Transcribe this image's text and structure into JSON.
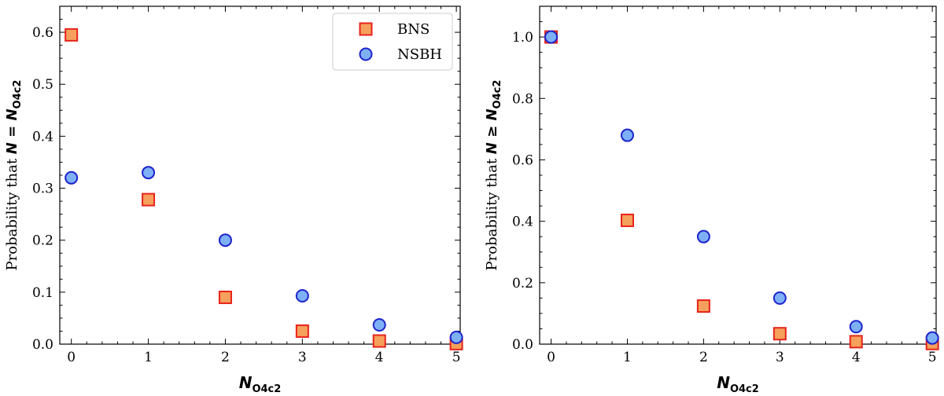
{
  "chart_data": [
    {
      "type": "scatter",
      "panel": "left",
      "x": [
        0,
        1,
        2,
        3,
        4,
        5
      ],
      "xlim": [
        -0.15,
        5.05
      ],
      "ylim": [
        0,
        0.65
      ],
      "xticks": [
        "0",
        "1",
        "2",
        "3",
        "4",
        "5"
      ],
      "yticks": [
        "0.0",
        "0.1",
        "0.2",
        "0.3",
        "0.4",
        "0.5",
        "0.6"
      ],
      "ytick_values": [
        0,
        0.1,
        0.2,
        0.3,
        0.4,
        0.5,
        0.6
      ],
      "xlabel": {
        "main": "N",
        "sub": "O4c2"
      },
      "ylabel": {
        "prefix": "Probability that ",
        "math": "N = N",
        "sub": "O4c2"
      },
      "legend": "top-right",
      "series": [
        {
          "name": "BNS",
          "marker": "square",
          "face": "#f5a05c",
          "edge": "#e8231b",
          "values": [
            0.595,
            0.278,
            0.09,
            0.025,
            0.006,
            0.001
          ]
        },
        {
          "name": "NSBH",
          "marker": "circle",
          "face": "#7db0f5",
          "edge": "#1f24cc",
          "values": [
            0.32,
            0.33,
            0.2,
            0.093,
            0.037,
            0.013
          ]
        }
      ]
    },
    {
      "type": "scatter",
      "panel": "right",
      "x": [
        0,
        1,
        2,
        3,
        4,
        5
      ],
      "xlim": [
        -0.15,
        5.05
      ],
      "ylim": [
        0,
        1.1
      ],
      "xticks": [
        "0",
        "1",
        "2",
        "3",
        "4",
        "5"
      ],
      "yticks": [
        "0.0",
        "0.2",
        "0.4",
        "0.6",
        "0.8",
        "1.0"
      ],
      "ytick_values": [
        0,
        0.2,
        0.4,
        0.6,
        0.8,
        1.0
      ],
      "xlabel": {
        "main": "N",
        "sub": "O4c2"
      },
      "ylabel": {
        "prefix": "Probability that ",
        "math": "N ≥ N",
        "sub": "O4c2"
      },
      "legend": "none",
      "series": [
        {
          "name": "BNS",
          "marker": "square",
          "face": "#f5a05c",
          "edge": "#e8231b",
          "values": [
            1.0,
            0.403,
            0.124,
            0.034,
            0.008,
            0.002
          ]
        },
        {
          "name": "NSBH",
          "marker": "circle",
          "face": "#7db0f5",
          "edge": "#1f24cc",
          "values": [
            1.0,
            0.68,
            0.35,
            0.15,
            0.057,
            0.02
          ]
        }
      ]
    }
  ]
}
